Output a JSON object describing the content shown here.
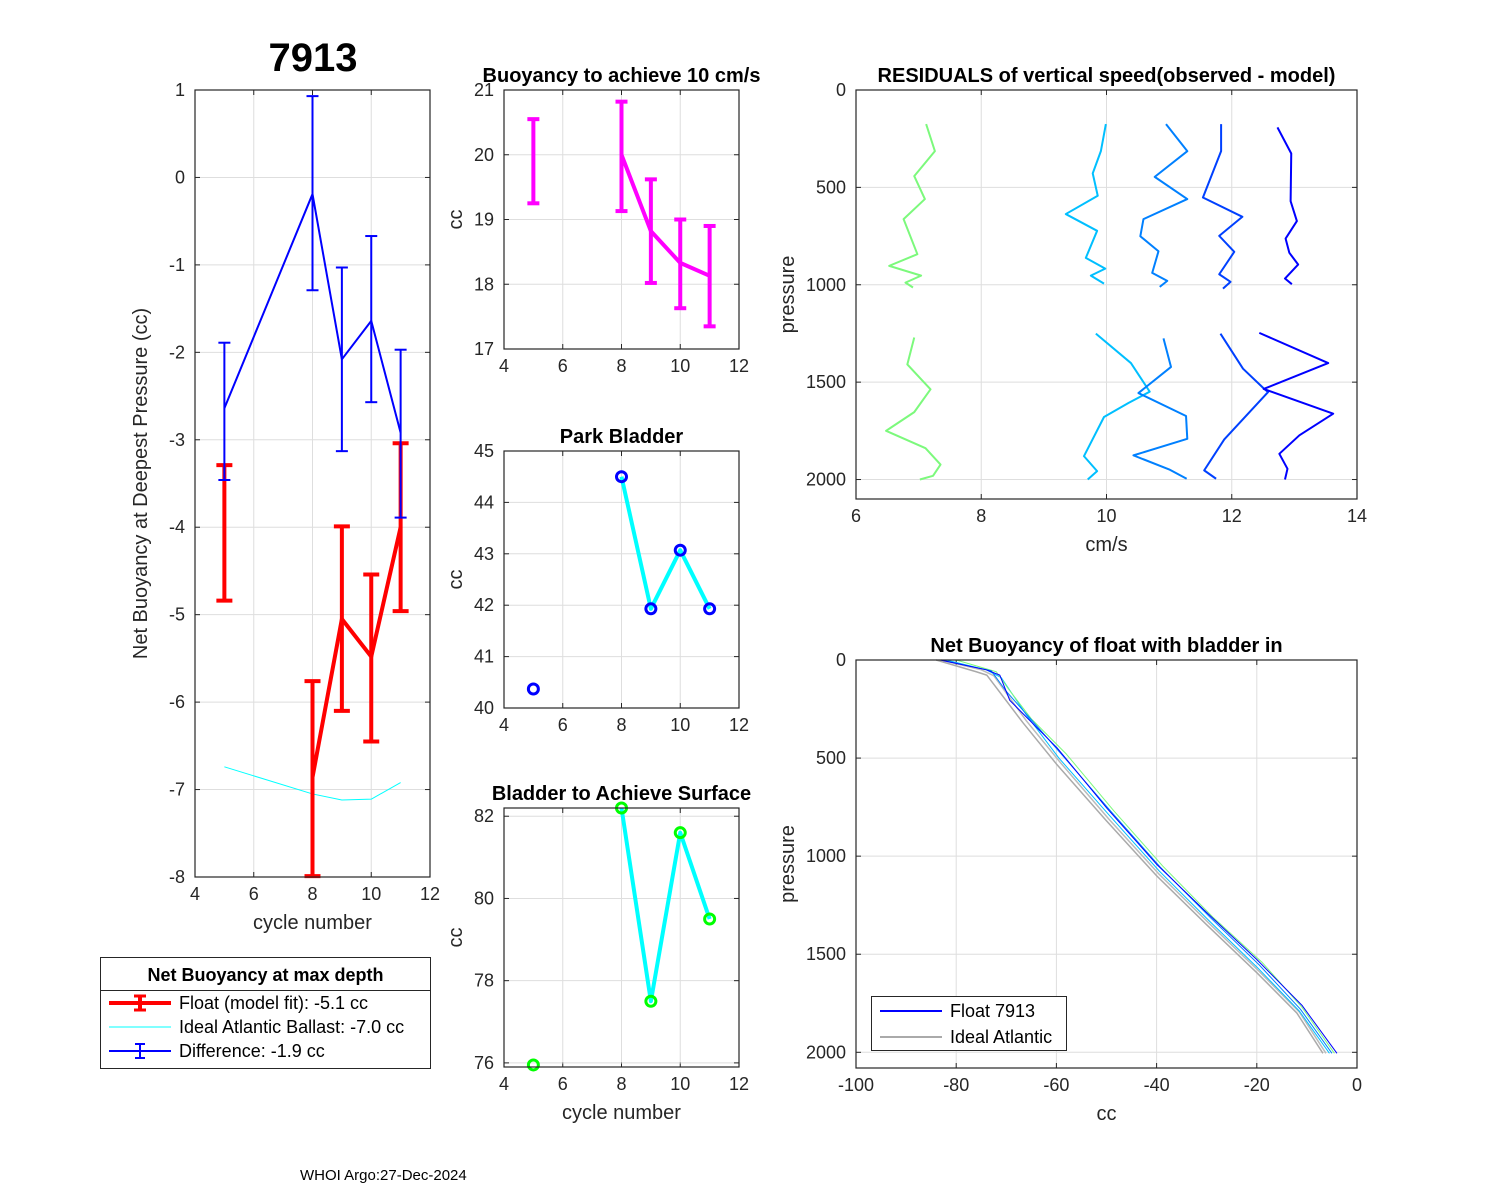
{
  "main_title": "7913",
  "footer": "WHOI Argo:27-Dec-2024",
  "legend_left": {
    "title": "Net Buoyancy at max depth",
    "items": [
      {
        "label": "Float (model fit):  -5.1 cc",
        "color": "#ff0000"
      },
      {
        "label": "Ideal Atlantic Ballast:  -7.0 cc",
        "color": "#00ffff"
      },
      {
        "label": "Difference:  -1.9 cc",
        "color": "#0000ff"
      }
    ]
  },
  "legend_right": {
    "items": [
      {
        "label": "Float 7913",
        "color": "#0000ff"
      },
      {
        "label": "Ideal Atlantic",
        "color": "#aaaaaa"
      }
    ]
  },
  "chart_data": [
    {
      "type": "line",
      "title": "",
      "xlabel": "cycle number",
      "ylabel": "Net Buoyancy at Deepest Pressure (cc)",
      "xlim": [
        4,
        12
      ],
      "ylim": [
        -8,
        1
      ],
      "xticks": [
        4,
        6,
        8,
        10,
        12
      ],
      "yticks": [
        -8,
        -7,
        -6,
        -5,
        -4,
        -3,
        -2,
        -1,
        0,
        1
      ],
      "grid": true,
      "series": [
        {
          "name": "Ideal Atlantic Ballast",
          "color": "#00ffff",
          "width": 1,
          "x": [
            5,
            8,
            9,
            10,
            11
          ],
          "y": [
            -6.74,
            -7.05,
            -7.12,
            -7.11,
            -6.92
          ]
        },
        {
          "name": "Float (model fit)",
          "color": "#ff0000",
          "width": 4,
          "cap": 8,
          "x": [
            5,
            8,
            9,
            10,
            11
          ],
          "y": [
            null,
            -6.86,
            -5.05,
            -5.48,
            -4.0
          ],
          "lo": [
            -4.84,
            -7.99,
            -6.1,
            -6.45,
            -4.96
          ],
          "hi": [
            -3.29,
            -5.76,
            -3.99,
            -4.54,
            -3.04
          ]
        },
        {
          "name": "Difference",
          "color": "#0000ff",
          "width": 2,
          "cap": 6,
          "x": [
            5,
            8,
            9,
            10,
            11
          ],
          "y": [
            -2.64,
            -0.19,
            -2.08,
            -1.64,
            -2.92
          ],
          "lo": [
            -3.46,
            -1.29,
            -3.13,
            -2.57,
            -3.89
          ],
          "hi": [
            -1.89,
            0.93,
            -1.03,
            -0.67,
            -1.97
          ]
        }
      ]
    },
    {
      "type": "line",
      "title": "Buoyancy to achieve 10 cm/s",
      "xlabel": "",
      "ylabel": "cc",
      "xlim": [
        4,
        12
      ],
      "ylim": [
        17,
        21
      ],
      "xticks": [
        4,
        6,
        8,
        10,
        12
      ],
      "yticks": [
        17,
        18,
        19,
        20,
        21
      ],
      "grid": true,
      "series": [
        {
          "name": "buoyancy",
          "color": "#ff00ff",
          "width": 4,
          "cap": 6,
          "x": [
            5,
            8,
            9,
            10,
            11
          ],
          "y": [
            null,
            20.0,
            18.82,
            18.33,
            18.13
          ],
          "lo": [
            19.25,
            19.13,
            18.02,
            17.63,
            17.35
          ],
          "hi": [
            20.55,
            20.82,
            19.62,
            19.0,
            18.9
          ]
        }
      ]
    },
    {
      "type": "line",
      "title": "Park Bladder",
      "xlabel": "",
      "ylabel": "cc",
      "xlim": [
        4,
        12
      ],
      "ylim": [
        40,
        45
      ],
      "xticks": [
        4,
        6,
        8,
        10,
        12
      ],
      "yticks": [
        40,
        41,
        42,
        43,
        44,
        45
      ],
      "grid": true,
      "series": [
        {
          "name": "park bladder line",
          "color": "#00ffff",
          "width": 4,
          "x": [
            5,
            8,
            9,
            10,
            11
          ],
          "y": [
            null,
            44.5,
            41.93,
            43.07,
            41.93
          ]
        },
        {
          "name": "park bladder points",
          "color": "#0000ff",
          "marker": "circle",
          "markerOnly": true,
          "x": [
            5,
            8,
            9,
            10,
            11
          ],
          "y": [
            40.37,
            44.5,
            41.93,
            43.07,
            41.93
          ]
        }
      ]
    },
    {
      "type": "line",
      "title": "Bladder to Achieve Surface",
      "xlabel": "cycle number",
      "ylabel": "cc",
      "xlim": [
        4,
        12
      ],
      "ylim": [
        75.9,
        82.2
      ],
      "xticks": [
        4,
        6,
        8,
        10,
        12
      ],
      "yticks": [
        76,
        78,
        80,
        82
      ],
      "grid": true,
      "series": [
        {
          "name": "surface bladder line",
          "color": "#00ffff",
          "width": 4,
          "x": [
            5,
            8,
            9,
            10,
            11
          ],
          "y": [
            null,
            82.2,
            77.5,
            81.6,
            79.5
          ]
        },
        {
          "name": "surface bladder points",
          "color": "#00ff00",
          "marker": "circle",
          "markerOnly": true,
          "x": [
            5,
            8,
            9,
            10,
            11
          ],
          "y": [
            75.95,
            82.2,
            77.5,
            81.6,
            79.5
          ]
        }
      ]
    },
    {
      "type": "line",
      "title": "RESIDUALS of vertical speed(observed - model)",
      "xlabel": "cm/s",
      "ylabel": "pressure",
      "xlim": [
        6,
        14
      ],
      "ylim": [
        0,
        2100
      ],
      "yreverse": true,
      "xticks": [
        6,
        8,
        10,
        12,
        14
      ],
      "yticks": [
        0,
        500,
        1000,
        1500,
        2000
      ],
      "grid": true,
      "series": [
        {
          "name": "cycle 5 descent",
          "color": "#7cf97c",
          "width": 2,
          "x": [
            7.12,
            7.26,
            6.93,
            7.1,
            6.76,
            6.98,
            6.53,
            7.04,
            6.79,
            6.91
          ],
          "y": [
            175,
            314,
            442,
            560,
            663,
            843,
            903,
            953,
            989,
            1014
          ]
        },
        {
          "name": "cycle 8 descent",
          "color": "#00bfff",
          "width": 2,
          "x": [
            9.99,
            9.91,
            9.78,
            9.86,
            9.35,
            9.85,
            9.67,
            9.98,
            9.75,
            9.96
          ],
          "y": [
            175,
            314,
            428,
            543,
            637,
            723,
            862,
            917,
            953,
            994
          ]
        },
        {
          "name": "cycle 9 descent",
          "color": "#0080ff",
          "width": 2,
          "x": [
            10.95,
            11.29,
            10.77,
            11.29,
            10.59,
            10.54,
            10.83,
            10.73,
            10.97,
            10.85
          ],
          "y": [
            175,
            314,
            446,
            560,
            663,
            751,
            828,
            939,
            980,
            1011
          ]
        },
        {
          "name": "cycle 10 descent",
          "color": "#0040ff",
          "width": 2,
          "x": [
            11.83,
            11.83,
            11.54,
            12.17,
            11.8,
            12.04,
            11.8,
            11.98,
            11.86
          ],
          "y": [
            175,
            314,
            552,
            651,
            749,
            831,
            946,
            985,
            1020
          ]
        },
        {
          "name": "cycle 11 descent",
          "color": "#0000ff",
          "width": 2,
          "x": [
            12.73,
            12.95,
            12.94,
            13.04,
            12.86,
            12.92,
            13.06,
            12.85,
            12.96
          ],
          "y": [
            192,
            326,
            571,
            673,
            763,
            836,
            896,
            968,
            997
          ]
        },
        {
          "name": "cycle 5 ascent",
          "color": "#7cf97c",
          "width": 2,
          "x": [
            6.93,
            6.82,
            7.19,
            6.93,
            6.48,
            7.11,
            7.35,
            7.23,
            7.02
          ],
          "y": [
            1271,
            1409,
            1537,
            1654,
            1750,
            1839,
            1923,
            1981,
            2000
          ]
        },
        {
          "name": "cycle 8 ascent",
          "color": "#00bfff",
          "width": 2,
          "x": [
            9.83,
            10.39,
            10.69,
            10.35,
            9.96,
            9.64,
            9.85,
            9.7
          ],
          "y": [
            1251,
            1402,
            1549,
            1607,
            1679,
            1880,
            1957,
            2000
          ]
        },
        {
          "name": "cycle 9 ascent",
          "color": "#0080ff",
          "width": 2,
          "x": [
            10.91,
            11.03,
            10.51,
            11.27,
            11.29,
            10.43,
            11.0,
            11.28
          ],
          "y": [
            1275,
            1422,
            1556,
            1674,
            1791,
            1876,
            1948,
            1996
          ]
        },
        {
          "name": "cycle 10 ascent",
          "color": "#0040ff",
          "width": 2,
          "x": [
            11.82,
            12.18,
            12.51,
            12.58,
            11.88,
            11.56,
            11.75
          ],
          "y": [
            1251,
            1431,
            1532,
            1551,
            1794,
            1953,
            1996
          ]
        },
        {
          "name": "cycle 11 ascent",
          "color": "#0000ff",
          "width": 2,
          "x": [
            12.44,
            13.54,
            12.51,
            13.62,
            13.08,
            12.76,
            12.89,
            12.85
          ],
          "y": [
            1247,
            1402,
            1535,
            1662,
            1773,
            1868,
            1945,
            2000
          ]
        }
      ]
    },
    {
      "type": "line",
      "title": "Net Buoyancy of float with bladder in",
      "xlabel": "cc",
      "ylabel": "pressure",
      "xlim": [
        -100,
        0
      ],
      "ylim": [
        0,
        2080
      ],
      "yreverse": true,
      "xticks": [
        -100,
        -80,
        -60,
        -40,
        -20,
        0
      ],
      "yticks": [
        0,
        500,
        1000,
        1500,
        2000
      ],
      "grid": true,
      "series": [
        {
          "name": "Ideal Atlantic",
          "color": "#aaaaaa",
          "width": 1.5,
          "x": [
            -84,
            -76,
            -73.9,
            -66.7,
            -60,
            -50,
            -40,
            -30,
            -20,
            -12,
            -6.8
          ],
          "y": [
            0,
            60,
            77,
            319,
            530,
            820,
            1100,
            1350,
            1594,
            1800,
            2005
          ]
        },
        {
          "name": "Ideal Atlantic 2",
          "color": "#bbbbbb",
          "width": 1.5,
          "x": [
            -83,
            -75,
            -72.5,
            -66,
            -59.3,
            -49.5,
            -39.5,
            -29.5,
            -19.5,
            -11.5,
            -6.2
          ],
          "y": [
            0,
            50,
            80,
            310,
            520,
            812,
            1092,
            1343,
            1588,
            1795,
            2005
          ]
        },
        {
          "name": "cycle 8",
          "color": "#00bfff",
          "width": 1,
          "x": [
            -82,
            -74,
            -71,
            -66,
            -59.5,
            -49.5,
            -39.5,
            -29.5,
            -19.8,
            -11.5,
            -5.5
          ],
          "y": [
            0,
            50,
            90,
            280,
            500,
            790,
            1075,
            1330,
            1570,
            1790,
            2005
          ]
        },
        {
          "name": "cycle 5",
          "color": "#7cf97c",
          "width": 1,
          "x": [
            -80,
            -72,
            -69.5,
            -65,
            -58,
            -48.5,
            -38.8,
            -28.8,
            -19,
            -11,
            -4.5
          ],
          "y": [
            0,
            60,
            150,
            300,
            480,
            770,
            1050,
            1310,
            1540,
            1770,
            2005
          ]
        },
        {
          "name": "cycle 9",
          "color": "#0080ff",
          "width": 1,
          "x": [
            -83,
            -73,
            -70,
            -65.5,
            -59,
            -49,
            -39.3,
            -29.2,
            -19.5,
            -11.3,
            -5
          ],
          "y": [
            0,
            55,
            160,
            290,
            480,
            775,
            1055,
            1315,
            1555,
            1780,
            2005
          ]
        },
        {
          "name": "Float 7913",
          "color": "#0000ff",
          "width": 1,
          "x": [
            -83.2,
            -74,
            -71.3,
            -69.3,
            -59.9,
            -49.9,
            -39.9,
            -29.9,
            -20,
            -11,
            -4
          ],
          "y": [
            0,
            50,
            77,
            206,
            447,
            756,
            1044,
            1290,
            1527,
            1760,
            2005
          ]
        }
      ]
    }
  ]
}
